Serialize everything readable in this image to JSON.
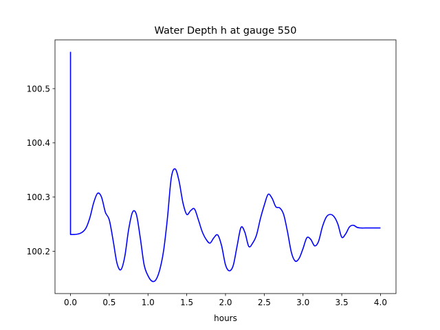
{
  "chart_data": {
    "type": "line",
    "title": "Water Depth h at gauge 550",
    "xlabel": "hours",
    "ylabel": "",
    "xlim": [
      -0.2,
      4.2
    ],
    "ylim": [
      100.122,
      100.59
    ],
    "xticks": [
      0.0,
      0.5,
      1.0,
      1.5,
      2.0,
      2.5,
      3.0,
      3.5,
      4.0
    ],
    "xtick_labels": [
      "0.0",
      "0.5",
      "1.0",
      "1.5",
      "2.0",
      "2.5",
      "3.0",
      "3.5",
      "4.0"
    ],
    "yticks": [
      100.2,
      100.3,
      100.4,
      100.5
    ],
    "ytick_labels": [
      "100.2",
      "100.3",
      "100.4",
      "100.5"
    ],
    "grid": false,
    "series": [
      {
        "color": "#0000ff",
        "x": [
          0.0,
          0.0,
          0.05,
          0.1,
          0.15,
          0.2,
          0.25,
          0.3,
          0.35,
          0.4,
          0.45,
          0.5,
          0.55,
          0.6,
          0.65,
          0.7,
          0.75,
          0.8,
          0.85,
          0.9,
          0.95,
          1.0,
          1.05,
          1.1,
          1.15,
          1.2,
          1.25,
          1.3,
          1.35,
          1.4,
          1.45,
          1.5,
          1.55,
          1.6,
          1.65,
          1.7,
          1.75,
          1.8,
          1.85,
          1.9,
          1.95,
          2.0,
          2.05,
          2.1,
          2.15,
          2.2,
          2.25,
          2.3,
          2.35,
          2.4,
          2.45,
          2.5,
          2.55,
          2.6,
          2.65,
          2.7,
          2.75,
          2.8,
          2.85,
          2.9,
          2.95,
          3.0,
          3.05,
          3.1,
          3.15,
          3.2,
          3.25,
          3.3,
          3.35,
          3.4,
          3.45,
          3.5,
          3.55,
          3.6,
          3.65,
          3.7,
          3.75,
          3.8,
          3.85,
          3.9,
          3.95,
          4.0
        ],
        "y": [
          100.568,
          100.231,
          100.231,
          100.232,
          100.235,
          100.243,
          100.262,
          100.29,
          100.307,
          100.3,
          100.272,
          100.258,
          100.22,
          100.178,
          100.166,
          100.19,
          100.24,
          100.272,
          100.268,
          100.225,
          100.175,
          100.155,
          100.145,
          100.147,
          100.165,
          100.2,
          100.26,
          100.335,
          100.352,
          100.33,
          100.29,
          100.268,
          100.275,
          100.278,
          100.258,
          100.236,
          100.222,
          100.215,
          100.225,
          100.23,
          100.21,
          100.175,
          100.164,
          100.174,
          100.21,
          100.244,
          100.235,
          100.209,
          100.215,
          100.23,
          100.26,
          100.285,
          100.305,
          100.298,
          100.282,
          100.28,
          100.268,
          100.236,
          100.198,
          100.182,
          100.187,
          100.205,
          100.225,
          100.222,
          100.21,
          100.218,
          100.245,
          100.263,
          100.268,
          100.264,
          100.25,
          100.226,
          100.232,
          100.245,
          100.248,
          100.244,
          100.243,
          100.243,
          100.243,
          100.243,
          100.243,
          100.243
        ]
      }
    ]
  }
}
